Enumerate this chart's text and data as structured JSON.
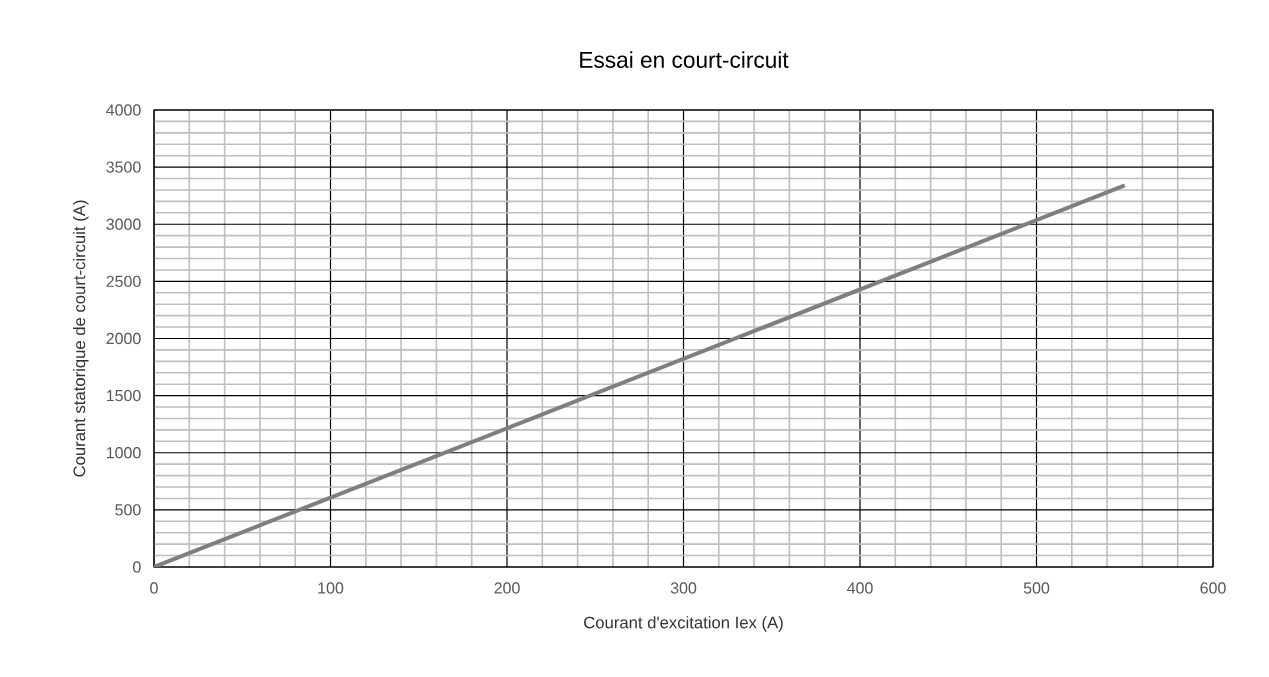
{
  "chart_data": {
    "type": "line",
    "title": "Essai en court-circuit",
    "xlabel": "Courant d'excitation Iex (A)",
    "ylabel": "Courant statorique de court-circuit (A)",
    "x": [
      0,
      550
    ],
    "series": [
      {
        "color": "#7f7f7f",
        "values": [
          0,
          3340
        ]
      }
    ],
    "xlim": [
      0,
      600
    ],
    "xticks": [
      0,
      100,
      200,
      300,
      400,
      500,
      600
    ],
    "ylim": [
      0,
      4000
    ],
    "yticks": [
      0,
      500,
      1000,
      1500,
      2000,
      2500,
      3000,
      3500,
      4000
    ],
    "grid": true,
    "marker": "none",
    "line_style": "solid"
  }
}
